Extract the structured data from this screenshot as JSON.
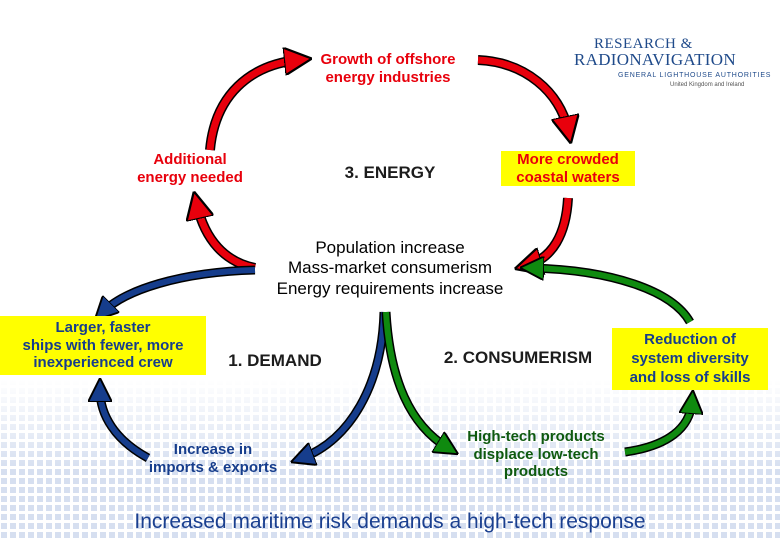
{
  "logo": {
    "line1": "RESEARCH &",
    "line2": "RADIONAVIGATION",
    "subtitle": "GENERAL LIGHTHOUSE AUTHORITIES",
    "caption": "United Kingdom and Ireland"
  },
  "red_cycle": {
    "top": [
      "Growth of offshore",
      "energy industries"
    ],
    "right": [
      "More crowded",
      "coastal waters"
    ],
    "left": [
      "Additional",
      "energy needed"
    ],
    "title": "3. ENERGY"
  },
  "center": {
    "lines": [
      "Population increase",
      "Mass-market consumerism",
      "Energy requirements increase"
    ]
  },
  "blue_cycle": {
    "left_box": [
      "Larger, faster",
      "ships with fewer, more",
      "inexperienced crew"
    ],
    "title": "1. DEMAND",
    "bottom": [
      "Increase in",
      "imports & exports"
    ]
  },
  "green_cycle": {
    "title": "2. CONSUMERISM",
    "right_box": [
      "Reduction of",
      "system diversity",
      "and loss of skills"
    ],
    "bottom": [
      "High-tech products",
      "displace low-tech",
      "products"
    ]
  },
  "footer": {
    "message": "Increased maritime risk demands a high-tech response"
  },
  "colors": {
    "red": "#e8000c",
    "blue": "#163d8c",
    "green": "#0f8a0f",
    "highlight": "#ffff00"
  }
}
